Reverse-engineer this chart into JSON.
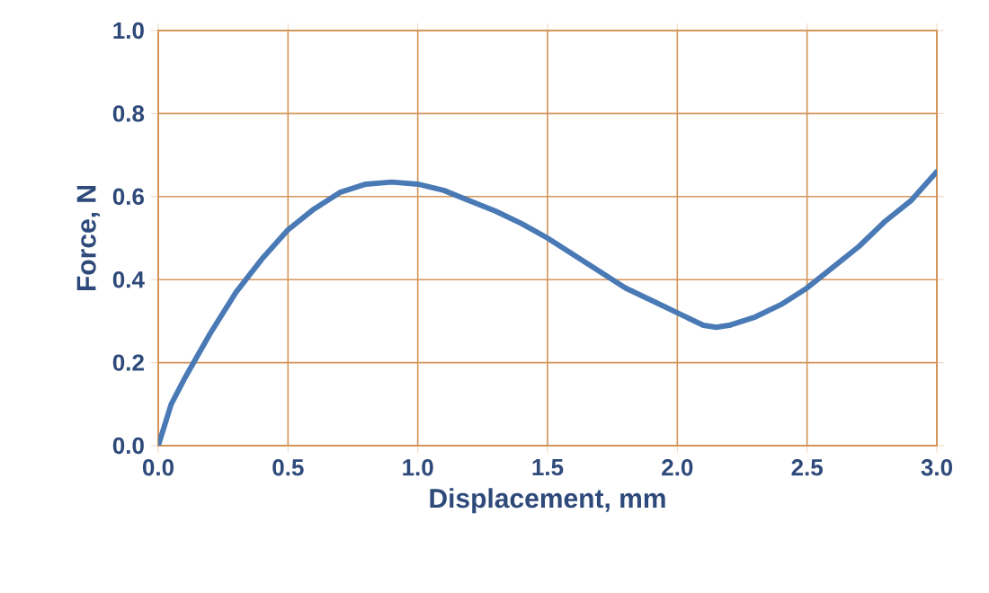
{
  "chart_data": {
    "type": "line",
    "xlabel": "Displacement, mm",
    "ylabel": "Force, N",
    "xlim": [
      0,
      3.0
    ],
    "ylim": [
      0,
      1.0
    ],
    "xticks": [
      {
        "value": 0,
        "label": "0.0"
      },
      0.5,
      {
        "value": 1,
        "label": "1.0"
      },
      1.5,
      {
        "value": 2,
        "label": "2.0"
      },
      2.5,
      {
        "value": 3,
        "label": "3.0"
      }
    ],
    "yticks": [
      {
        "value": 0,
        "label": "0.0"
      },
      0.2,
      0.4,
      0.6,
      0.8,
      {
        "value": 1,
        "label": "1.0"
      }
    ],
    "grid": true,
    "marker": "none",
    "line_style": "solid",
    "series": [
      {
        "color": "#4a7ab5",
        "x": [
          0,
          0.05,
          0.1,
          0.2,
          0.3,
          0.4,
          0.5,
          0.6,
          0.7,
          0.8,
          0.9,
          1.0,
          1.1,
          1.2,
          1.3,
          1.4,
          1.5,
          1.6,
          1.7,
          1.8,
          1.9,
          2.0,
          2.1,
          2.15,
          2.2,
          2.3,
          2.4,
          2.5,
          2.6,
          2.7,
          2.8,
          2.9,
          3.0
        ],
        "values": [
          0,
          0.1,
          0.16,
          0.27,
          0.37,
          0.45,
          0.52,
          0.57,
          0.61,
          0.63,
          0.635,
          0.63,
          0.615,
          0.59,
          0.565,
          0.535,
          0.5,
          0.46,
          0.42,
          0.38,
          0.35,
          0.32,
          0.29,
          0.285,
          0.29,
          0.31,
          0.34,
          0.38,
          0.43,
          0.48,
          0.54,
          0.59,
          0.66
        ]
      }
    ]
  }
}
